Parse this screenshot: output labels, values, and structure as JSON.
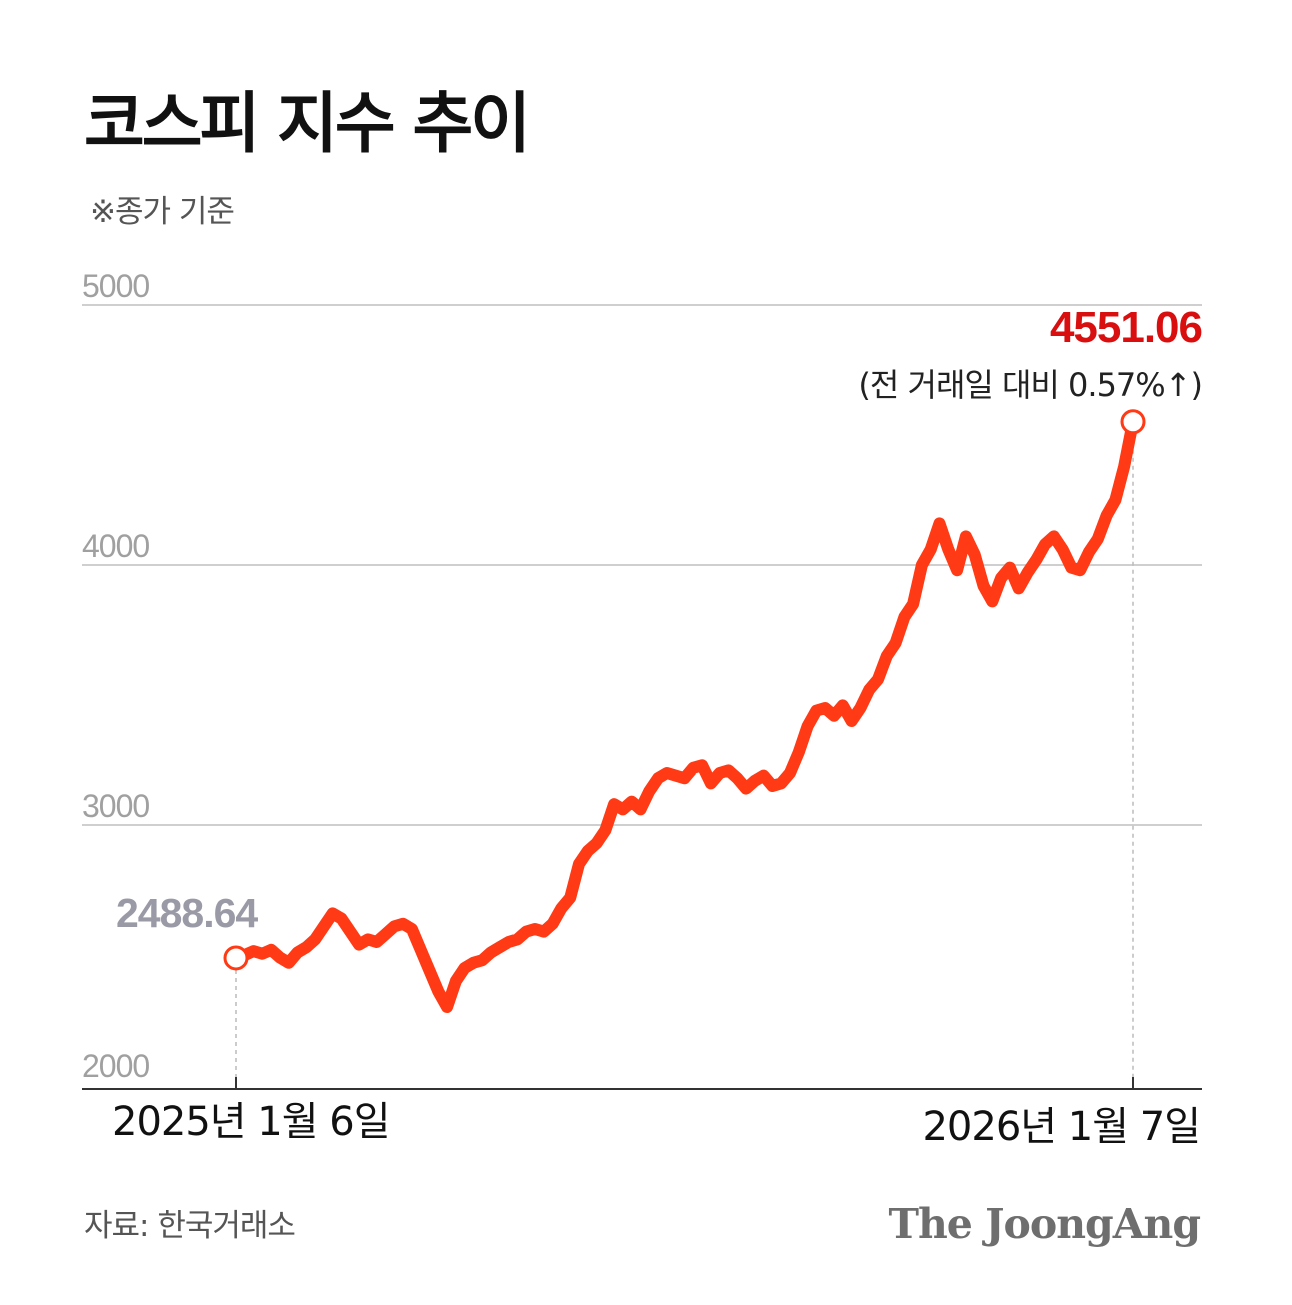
{
  "chart_data": {
    "type": "line",
    "title": "코스피 지수 추이",
    "subtitle": "※종가 기준",
    "y_ticks": [
      "5000",
      "4000",
      "3000",
      "2000"
    ],
    "ylim": [
      2000,
      5000
    ],
    "x_labels": {
      "start": "2025년 1월 6일",
      "end": "2026년 1월 7일"
    },
    "start": {
      "label": "2488.64",
      "value": 2488.64
    },
    "end": {
      "label": "4551.06",
      "value": 4551.06,
      "note": "(전 거래일 대비 0.57%↑)"
    },
    "line_color": "#ff3a14",
    "series": [
      {
        "values": [
          2488.64,
          2500,
          2515,
          2505,
          2520,
          2490,
          2470,
          2510,
          2530,
          2560,
          2610,
          2660,
          2640,
          2590,
          2540,
          2560,
          2550,
          2580,
          2610,
          2620,
          2600,
          2520,
          2440,
          2360,
          2300,
          2400,
          2450,
          2470,
          2480,
          2510,
          2530,
          2550,
          2560,
          2590,
          2600,
          2590,
          2620,
          2680,
          2720,
          2850,
          2900,
          2930,
          2980,
          3080,
          3060,
          3090,
          3060,
          3130,
          3180,
          3200,
          3190,
          3180,
          3220,
          3230,
          3160,
          3200,
          3210,
          3180,
          3140,
          3170,
          3190,
          3150,
          3160,
          3200,
          3280,
          3380,
          3440,
          3450,
          3420,
          3460,
          3400,
          3450,
          3520,
          3560,
          3650,
          3700,
          3800,
          3850,
          4000,
          4060,
          4160,
          4060,
          3980,
          4110,
          4040,
          3920,
          3860,
          3950,
          3990,
          3910,
          3970,
          4020,
          4080,
          4110,
          4060,
          3990,
          3980,
          4050,
          4100,
          4190,
          4250,
          4380,
          4551.06
        ]
      }
    ]
  },
  "source": "자료: 한국거래소",
  "brand": "The JoongAng"
}
